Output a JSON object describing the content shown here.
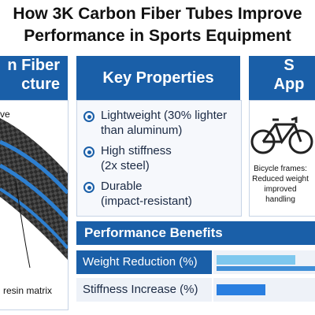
{
  "title": {
    "line1": "How 3K Carbon Fiber Tubes Improve",
    "line2": "Performance in Sports Equipment"
  },
  "structure_panel": {
    "heading_line1": "n Fiber",
    "heading_line2": "cture",
    "top_label": "ve",
    "bottom_label": "resin matrix"
  },
  "properties_panel": {
    "heading": "Key Properties",
    "items": [
      {
        "line1": "Lightweight (30% lighter",
        "line2": "than aluminum)"
      },
      {
        "line1": "High stiffness",
        "line2": "(2x steel)"
      },
      {
        "line1": "Durable",
        "line2": "(impact-resistant)"
      }
    ]
  },
  "applications_panel": {
    "heading_line1": "S",
    "heading_line2": "App",
    "icon": "bicycle-icon",
    "caption_lines": [
      "Bicycle frames:",
      "Reduced weight",
      "improved",
      "handling"
    ]
  },
  "performance": {
    "heading": "Performance Benefits",
    "rows": [
      {
        "label": "Weight Reduction (%)"
      },
      {
        "label": "Stiffness Increase (%)"
      }
    ]
  },
  "colors": {
    "accent": "#1a5fa8",
    "light_bar": "#7ec8ee",
    "mid_bar": "#3f8fd8"
  }
}
